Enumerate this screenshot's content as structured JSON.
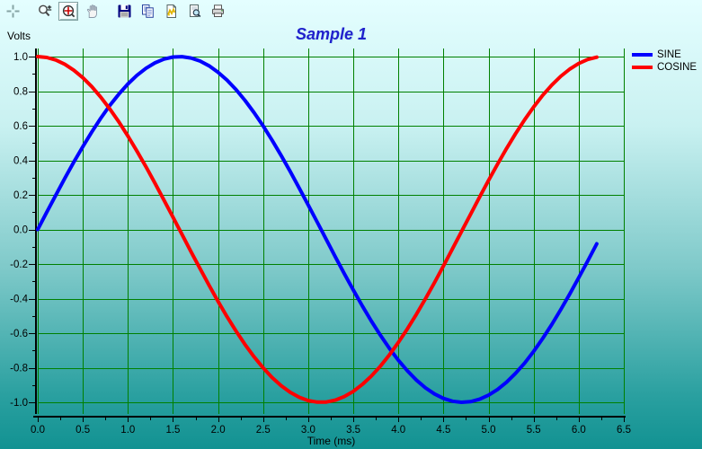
{
  "toolbar": {
    "buttons": [
      {
        "name": "crosshair-tool",
        "selected": false
      },
      {
        "name": "zoom-in-out-tool",
        "selected": false
      },
      {
        "name": "zoom-area-tool",
        "selected": true
      },
      {
        "name": "pan-tool",
        "selected": false
      },
      {
        "name": "save-chart",
        "selected": false
      },
      {
        "name": "copy-chart",
        "selected": false
      },
      {
        "name": "chart-gallery",
        "selected": false
      },
      {
        "name": "print-preview",
        "selected": false
      },
      {
        "name": "print-chart",
        "selected": false
      }
    ]
  },
  "chart_data": {
    "type": "line",
    "title": "Sample 1",
    "xlabel": "Time (ms)",
    "ylabel": "Volts",
    "xlim": [
      0,
      6.5
    ],
    "ylim": [
      -1.0,
      1.0
    ],
    "grid": {
      "on": true,
      "color": "#008000",
      "x_step": 0.5,
      "y_step": 0.2,
      "x_minor_step": 0.25,
      "y_minor_step": 0.1
    },
    "legend_position": "top-right",
    "title_color": "#2020cc",
    "axis_color": "#000000",
    "x_tick_values": [
      0.0,
      0.5,
      1.0,
      1.5,
      2.0,
      2.5,
      3.0,
      3.5,
      4.0,
      4.5,
      5.0,
      5.5,
      6.0,
      6.5
    ],
    "x_tick_labels": [
      "0.0",
      "0.5",
      "1.0",
      "1.5",
      "2.0",
      "2.5",
      "3.0",
      "3.5",
      "4.0",
      "4.5",
      "5.0",
      "5.5",
      "6.0",
      "6.5"
    ],
    "y_tick_values": [
      1.0,
      0.8,
      0.6,
      0.4,
      0.2,
      0.0,
      -0.2,
      -0.4,
      -0.6,
      -0.8,
      -1.0
    ],
    "y_tick_labels": [
      "1.0",
      "0.8",
      "0.6",
      "0.4",
      "0.2",
      "0.0",
      "-0.2",
      "-0.4",
      "-0.6",
      "-0.8",
      "-1.0"
    ],
    "x": [
      0.0,
      0.1,
      0.2,
      0.3,
      0.4,
      0.5,
      0.6,
      0.7,
      0.8,
      0.9,
      1.0,
      1.1,
      1.2,
      1.3,
      1.4,
      1.5,
      1.6,
      1.7,
      1.8,
      1.9,
      2.0,
      2.1,
      2.2,
      2.3,
      2.4,
      2.5,
      2.6,
      2.7,
      2.8,
      2.9,
      3.0,
      3.1,
      3.2,
      3.3,
      3.4,
      3.5,
      3.6,
      3.7,
      3.8,
      3.9,
      4.0,
      4.1,
      4.2,
      4.3,
      4.4,
      4.5,
      4.6,
      4.7,
      4.8,
      4.9,
      5.0,
      5.1,
      5.2,
      5.3,
      5.4,
      5.5,
      5.6,
      5.7,
      5.8,
      5.9,
      6.0,
      6.1,
      6.2
    ],
    "series": [
      {
        "name": "SINE",
        "color": "#0000ff",
        "values": [
          0.0,
          0.0998,
          0.1987,
          0.2955,
          0.3894,
          0.4794,
          0.5646,
          0.6442,
          0.7174,
          0.7833,
          0.8415,
          0.8912,
          0.932,
          0.9636,
          0.9854,
          0.9975,
          0.9996,
          0.9917,
          0.9738,
          0.9463,
          0.9093,
          0.8632,
          0.8085,
          0.7457,
          0.6755,
          0.5985,
          0.5155,
          0.4274,
          0.335,
          0.2392,
          0.1411,
          0.0416,
          -0.0584,
          -0.1577,
          -0.2555,
          -0.3508,
          -0.4425,
          -0.5298,
          -0.6119,
          -0.6878,
          -0.7568,
          -0.8183,
          -0.8716,
          -0.9162,
          -0.9516,
          -0.9775,
          -0.9937,
          -0.9999,
          -0.9962,
          -0.9825,
          -0.9589,
          -0.9258,
          -0.8835,
          -0.8323,
          -0.7728,
          -0.7055,
          -0.6313,
          -0.5507,
          -0.4646,
          -0.3739,
          -0.2794,
          -0.1822,
          -0.0831
        ]
      },
      {
        "name": "COSINE",
        "color": "#ff0000",
        "values": [
          1.0,
          0.995,
          0.9801,
          0.9553,
          0.9211,
          0.8776,
          0.8253,
          0.7648,
          0.6967,
          0.6216,
          0.5403,
          0.4536,
          0.3624,
          0.2675,
          0.17,
          0.0707,
          -0.0292,
          -0.1288,
          -0.2272,
          -0.3233,
          -0.4161,
          -0.5048,
          -0.5885,
          -0.6663,
          -0.7374,
          -0.8011,
          -0.8569,
          -0.9041,
          -0.9422,
          -0.971,
          -0.99,
          -0.9991,
          -0.9983,
          -0.9875,
          -0.9668,
          -0.9365,
          -0.8968,
          -0.8481,
          -0.791,
          -0.7259,
          -0.6536,
          -0.5748,
          -0.4903,
          -0.4008,
          -0.3073,
          -0.2108,
          -0.1122,
          -0.0124,
          0.0875,
          0.1865,
          0.2837,
          0.378,
          0.4685,
          0.5544,
          0.6347,
          0.7087,
          0.7756,
          0.8347,
          0.8855,
          0.9275,
          0.9602,
          0.9833,
          0.9965
        ]
      }
    ]
  }
}
